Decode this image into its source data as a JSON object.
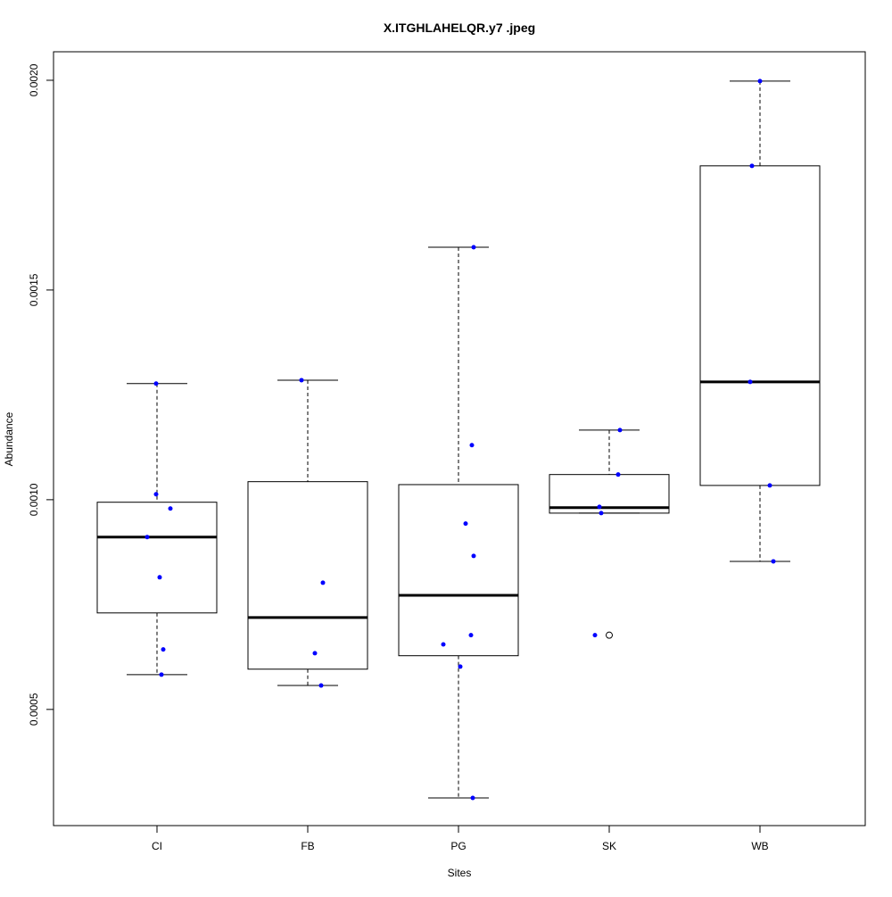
{
  "chart_data": {
    "type": "box",
    "title": "X.ITGHLAHELQR.y7 .jpeg",
    "xlabel": "Sites",
    "ylabel": "Abundance",
    "categories": [
      "CI",
      "FB",
      "PG",
      "SK",
      "WB"
    ],
    "ylim": [
      0.000223,
      0.002068
    ],
    "yticks": [
      0.0005,
      0.001,
      0.0015,
      0.002
    ],
    "ytick_labels": [
      "0.0005",
      "0.0010",
      "0.0015",
      "0.0020"
    ],
    "grid": false,
    "boxes": [
      {
        "category": "CI",
        "whisker_low": 0.000583,
        "q1": 0.00073,
        "median": 0.000911,
        "q3": 0.000994,
        "whisker_high": 0.001277,
        "outliers": []
      },
      {
        "category": "FB",
        "whisker_low": 0.000557,
        "q1": 0.000596,
        "median": 0.000719,
        "q3": 0.001043,
        "whisker_high": 0.001285,
        "outliers": []
      },
      {
        "category": "PG",
        "whisker_low": 0.000289,
        "q1": 0.000628,
        "median": 0.000772,
        "q3": 0.001036,
        "whisker_high": 0.001602,
        "outliers": []
      },
      {
        "category": "SK",
        "whisker_low": 0.000968,
        "q1": 0.000968,
        "median": 0.000981,
        "q3": 0.00106,
        "whisker_high": 0.001166,
        "outliers": [
          0.000677
        ]
      },
      {
        "category": "WB",
        "whisker_low": 0.000853,
        "q1": 0.001034,
        "median": 0.001281,
        "q3": 0.001796,
        "whisker_high": 0.001998,
        "outliers": []
      }
    ],
    "points": [
      {
        "category": "CI",
        "values": [
          0.001277,
          0.001013,
          0.000979,
          0.000911,
          0.000815,
          0.000643,
          0.000583
        ]
      },
      {
        "category": "FB",
        "values": [
          0.001285,
          0.000802,
          0.000634,
          0.000557
        ]
      },
      {
        "category": "PG",
        "values": [
          0.001602,
          0.00113,
          0.000943,
          0.000866,
          0.000677,
          0.000655,
          0.000602,
          0.000289
        ]
      },
      {
        "category": "SK",
        "values": [
          0.001166,
          0.00106,
          0.000983,
          0.000968,
          0.000677
        ]
      },
      {
        "category": "WB",
        "values": [
          0.001998,
          0.001796,
          0.001281,
          0.001034,
          0.000853
        ]
      }
    ],
    "point_color": "#0000ff"
  }
}
